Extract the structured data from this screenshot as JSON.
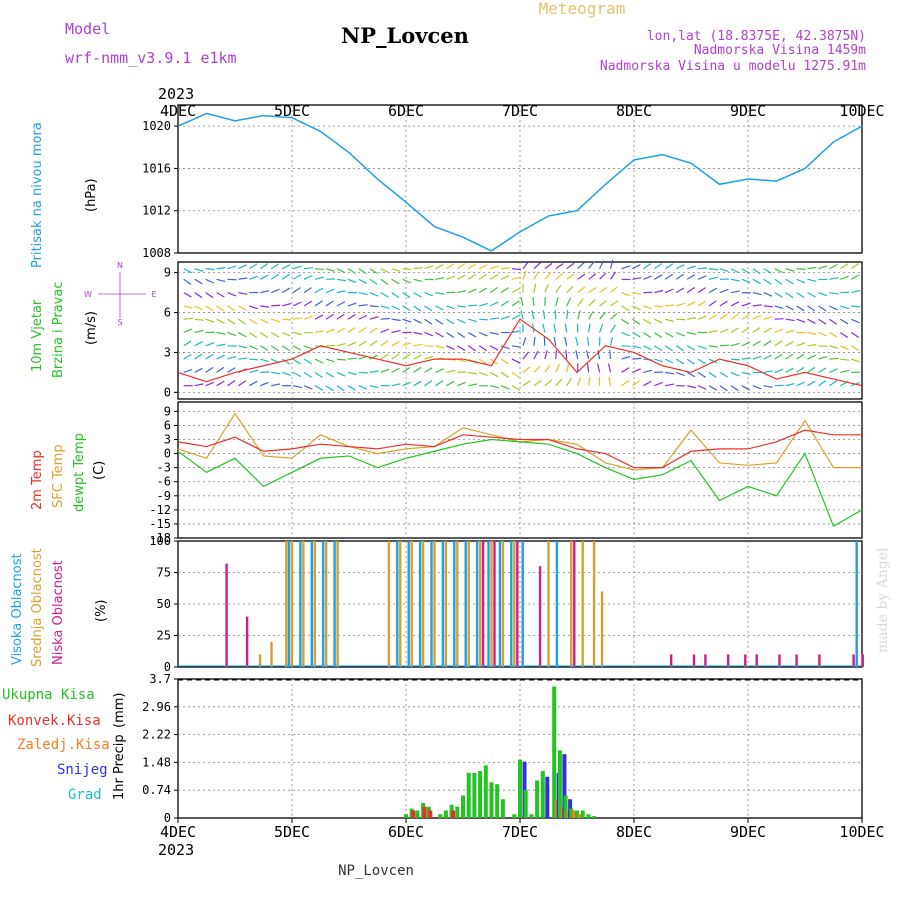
{
  "header": {
    "model_label": "Model",
    "model_name": "wrf-nmm_v3.9.1 e1km",
    "station": "NP_Lovcen",
    "product": "Meteogram",
    "lonlat": "lon,lat (18.8375E, 42.3875N)",
    "elevation": "Nadmorska Visina 1459m",
    "model_elevation": "Nadmorska Visina u modelu 1275.91m",
    "footer_station": "NP_Lovcen",
    "credit": "made by Angel"
  },
  "colors": {
    "pressure": "#1ea0e6",
    "wind_label": "#22c422",
    "dir_label": "#b040d0",
    "t2m": "#e8302a",
    "tsfc": "#d9a030",
    "dewpt": "#22c422",
    "high_cloud": "#1ea0e6",
    "mid_cloud": "#d9a030",
    "low_cloud": "#d01c8c",
    "total_precip": "#22c422",
    "conv_precip": "#e8302a",
    "frz_precip": "#ff7a20",
    "snow": "#3030e0",
    "graupel": "#20c0c0",
    "credit": "#d8d8d8"
  },
  "time_axis": {
    "year_top": "2023",
    "year_bottom": "2023",
    "labels": [
      "4DEC",
      "5DEC",
      "6DEC",
      "7DEC",
      "8DEC",
      "9DEC",
      "10DEC"
    ]
  },
  "chart_data": [
    {
      "type": "line",
      "id": "pressure",
      "ylabel": "Pritisak na nivou mora",
      "unit": "(hPa)",
      "ylim": [
        1008,
        1022
      ],
      "yticks": [
        1008,
        1012,
        1016,
        1020
      ],
      "x": [
        0,
        0.25,
        0.5,
        0.75,
        1,
        1.25,
        1.5,
        1.75,
        2,
        2.25,
        2.5,
        2.75,
        3,
        3.25,
        3.5,
        3.75,
        4,
        4.25,
        4.5,
        4.75,
        5,
        5.25,
        5.5,
        5.75,
        6
      ],
      "series": [
        {
          "values": [
            1020.0,
            1021.2,
            1020.5,
            1021.0,
            1020.8,
            1019.5,
            1017.5,
            1015.0,
            1012.8,
            1010.5,
            1009.5,
            1008.2,
            1010.0,
            1011.5,
            1012.0,
            1014.5,
            1016.8,
            1017.3,
            1016.5,
            1014.5,
            1015.0,
            1014.8,
            1016.0,
            1018.5,
            1020.0
          ]
        }
      ],
      "grid": true
    },
    {
      "type": "wind",
      "id": "wind",
      "ylabel_1": "10m Vjetar",
      "ylabel_2": "Brzina i Pravac",
      "unit": "(m/s)",
      "compass": [
        "N",
        "E",
        "S",
        "W"
      ],
      "ylim": [
        -0.5,
        9.8
      ],
      "yticks": [
        0,
        3,
        6,
        9
      ],
      "x": [
        0,
        0.25,
        0.5,
        0.75,
        1,
        1.25,
        1.5,
        1.75,
        2,
        2.25,
        2.5,
        2.75,
        3,
        3.25,
        3.5,
        3.75,
        4,
        4.25,
        4.5,
        4.75,
        5,
        5.25,
        5.5,
        5.75,
        6
      ],
      "series": [
        {
          "values": [
            1.5,
            0.8,
            1.5,
            2.0,
            2.5,
            3.5,
            3.0,
            2.5,
            2.0,
            2.5,
            2.5,
            2.0,
            5.5,
            4.0,
            1.5,
            3.5,
            3.0,
            2.0,
            1.5,
            2.5,
            2.0,
            1.0,
            1.5,
            1.0,
            0.5
          ]
        }
      ],
      "grid": true
    },
    {
      "type": "line",
      "id": "temperature",
      "ylabel_1": "2m Temp",
      "ylabel_2": "SFC Temp",
      "ylabel_3": "dewpt Temp",
      "unit": "(C)",
      "ylim": [
        -18,
        11
      ],
      "yticks": [
        -18,
        -15,
        -12,
        -9,
        -6,
        -3,
        0,
        3,
        6,
        9
      ],
      "x": [
        0,
        0.25,
        0.5,
        0.75,
        1,
        1.25,
        1.5,
        1.75,
        2,
        2.25,
        2.5,
        2.75,
        3,
        3.25,
        3.5,
        3.75,
        4,
        4.25,
        4.5,
        4.75,
        5,
        5.25,
        5.5,
        5.75,
        6
      ],
      "series": [
        {
          "values": [
            2.5,
            1.5,
            3.5,
            0.5,
            1.0,
            2.0,
            1.5,
            1.0,
            2.0,
            1.5,
            4.0,
            3.5,
            3.0,
            3.0,
            1.0,
            0.0,
            -3.0,
            -3.0,
            0.5,
            1.0,
            1.0,
            2.5,
            5.0,
            4.0,
            4.0
          ]
        },
        {
          "values": [
            1.0,
            -1.0,
            8.5,
            -0.5,
            -1.0,
            4.0,
            1.5,
            0.0,
            1.0,
            1.5,
            5.5,
            4.0,
            2.5,
            3.0,
            2.0,
            -2.0,
            -3.5,
            -3.0,
            5.0,
            -2.0,
            -2.5,
            -2.0,
            7.0,
            -3.0,
            -3.0
          ]
        },
        {
          "values": [
            0.5,
            -4.0,
            -1.0,
            -7.0,
            -4.0,
            -1.0,
            -0.5,
            -3.0,
            -1.0,
            0.5,
            2.0,
            3.0,
            2.5,
            2.0,
            0.0,
            -3.0,
            -5.5,
            -4.5,
            -1.5,
            -10.0,
            -7.0,
            -9.0,
            0.0,
            -15.5,
            -12.0
          ]
        }
      ],
      "grid": true
    },
    {
      "type": "bar",
      "id": "clouds",
      "ylabel_1": "Visoka Oblacnost",
      "ylabel_2": "Srednja Oblacnost",
      "ylabel_3": "Niska Oblacnost",
      "unit": "(%)",
      "ylim": [
        0,
        100
      ],
      "yticks": [
        0,
        25,
        50,
        75,
        100
      ],
      "x": [
        0.4,
        0.58,
        0.72,
        0.82,
        0.95,
        1.0,
        1.1,
        1.2,
        1.3,
        1.4,
        1.55,
        1.7,
        1.85,
        1.95,
        2.05,
        2.15,
        2.25,
        2.35,
        2.45,
        2.55,
        2.65,
        2.75,
        2.85,
        2.95,
        3.05,
        3.15,
        3.25,
        3.35,
        3.45,
        3.55,
        3.65,
        3.72,
        3.8,
        4.3,
        4.5,
        4.6,
        4.8,
        4.95,
        5.05,
        5.25,
        5.4,
        5.6,
        5.9,
        5.98
      ],
      "series": [
        {
          "values": [
            0,
            0,
            0,
            0,
            0,
            100,
            100,
            100,
            100,
            100,
            0,
            0,
            0,
            100,
            100,
            100,
            100,
            100,
            100,
            100,
            100,
            100,
            100,
            100,
            100,
            0,
            0,
            100,
            0,
            0,
            0,
            0,
            0,
            0,
            0,
            0,
            0,
            0,
            0,
            0,
            0,
            0,
            0,
            100
          ]
        },
        {
          "values": [
            0,
            0,
            10,
            20,
            100,
            100,
            100,
            100,
            100,
            100,
            0,
            0,
            100,
            100,
            100,
            100,
            100,
            100,
            100,
            100,
            100,
            100,
            100,
            100,
            0,
            0,
            100,
            0,
            100,
            100,
            100,
            60,
            0,
            0,
            0,
            0,
            0,
            0,
            0,
            0,
            0,
            0,
            0,
            0
          ]
        },
        {
          "values": [
            82,
            40,
            0,
            0,
            0,
            0,
            0,
            0,
            0,
            0,
            0,
            0,
            0,
            0,
            0,
            0,
            0,
            0,
            0,
            0,
            100,
            100,
            0,
            100,
            0,
            80,
            0,
            0,
            100,
            0,
            0,
            0,
            0,
            10,
            10,
            10,
            10,
            10,
            10,
            10,
            10,
            10,
            10,
            10
          ]
        }
      ],
      "grid": true
    },
    {
      "type": "bar",
      "id": "precip",
      "legend": [
        "Ukupna Kisa",
        "Konvek.Kisa",
        "Zaledj.Kisa",
        "Snijeg",
        "Grad"
      ],
      "ylabel": "1hr Precip",
      "unit": "(mm)",
      "ylim": [
        0,
        3.7
      ],
      "yticks": [
        0,
        0.74,
        1.48,
        2.22,
        2.96,
        3.7
      ],
      "x": [
        2.0,
        2.05,
        2.1,
        2.15,
        2.2,
        2.3,
        2.35,
        2.4,
        2.45,
        2.5,
        2.55,
        2.6,
        2.65,
        2.7,
        2.75,
        2.8,
        2.85,
        2.95,
        3.0,
        3.05,
        3.1,
        3.15,
        3.2,
        3.3,
        3.35,
        3.4,
        3.45,
        3.5,
        3.55,
        3.6,
        3.65
      ],
      "series": [
        {
          "values": [
            0.1,
            0.25,
            0.2,
            0.4,
            0.3,
            0.1,
            0.2,
            0.35,
            0.3,
            0.6,
            1.2,
            1.2,
            1.25,
            1.4,
            0.95,
            0.9,
            0.5,
            0.1,
            1.55,
            0.75,
            0.1,
            1.0,
            1.25,
            3.5,
            1.8,
            0.6,
            0.25,
            0.2,
            0.2,
            0.1,
            0.05
          ]
        },
        {
          "values": [
            0,
            0.2,
            0,
            0.3,
            0.2,
            0,
            0,
            0.2,
            0,
            0,
            0,
            0,
            0,
            0,
            0,
            0,
            0,
            0,
            0,
            0,
            0,
            0,
            0,
            0,
            0,
            0,
            0,
            0,
            0,
            0,
            0
          ]
        },
        {
          "values": [
            0,
            0,
            0,
            0,
            0,
            0,
            0,
            0,
            0,
            0,
            0,
            0,
            0,
            0,
            0,
            0,
            0,
            0,
            0,
            0,
            0,
            0,
            0,
            0.5,
            0.3,
            0.2,
            0.2,
            0.1,
            0,
            0,
            0
          ]
        },
        {
          "values": [
            0,
            0,
            0,
            0,
            0,
            0,
            0,
            0,
            0,
            0,
            0,
            0,
            0,
            0,
            0,
            0,
            0,
            0,
            1.5,
            0,
            0,
            0,
            1.1,
            1.2,
            1.7,
            0.5,
            0,
            0,
            0,
            0,
            0
          ]
        },
        {
          "values": [
            0,
            0,
            0,
            0,
            0,
            0,
            0,
            0,
            0,
            0,
            0,
            0,
            0,
            0,
            0,
            0,
            0,
            0,
            0,
            0,
            0,
            0,
            0,
            0,
            0,
            0,
            0,
            0,
            0,
            0,
            0
          ]
        }
      ],
      "grid": true
    }
  ]
}
